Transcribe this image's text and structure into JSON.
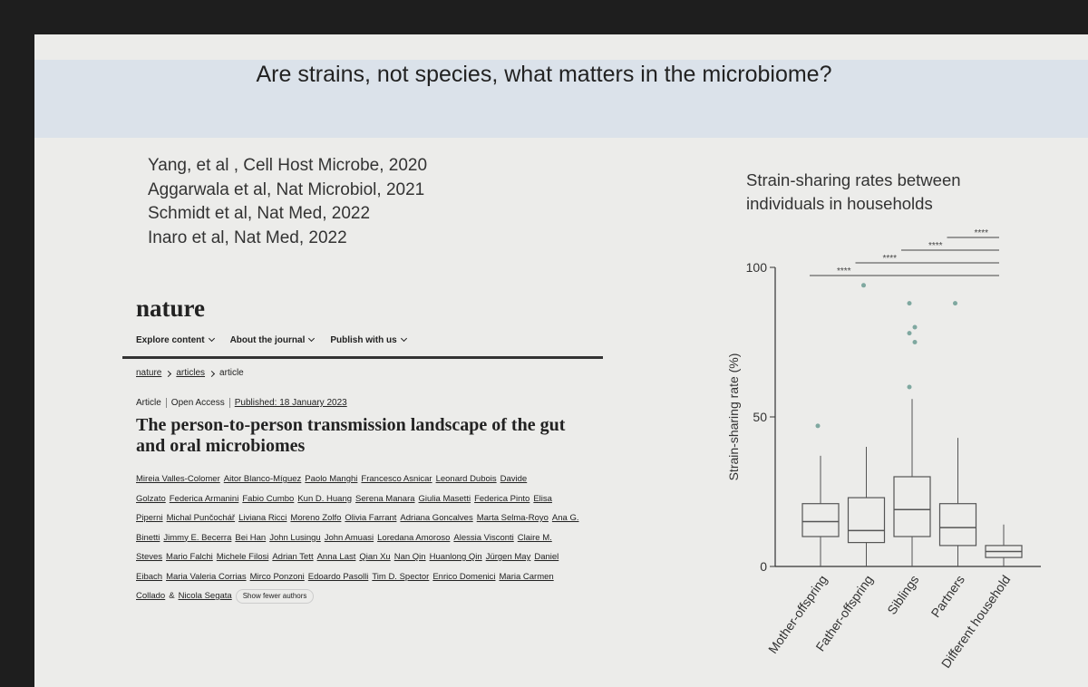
{
  "slide": {
    "title": "Are strains, not species, what matters in the microbiome?"
  },
  "references": [
    "Yang, et al , Cell Host Microbe, 2020",
    "Aggarwala et al, Nat Microbiol, 2021",
    "Schmidt et al, Nat Med, 2022",
    "Inaro et al, Nat Med, 2022"
  ],
  "article": {
    "brand": "nature",
    "nav": [
      "Explore content",
      "About the journal",
      "Publish with us"
    ],
    "breadcrumb": [
      "nature",
      "articles",
      "article"
    ],
    "meta": [
      "Article",
      "Open Access",
      "Published: 18 January 2023"
    ],
    "title": "The person-to-person transmission landscape of the gut and oral microbiomes",
    "authors": [
      "Mireia Valles-Colomer",
      "Aitor Blanco-Míguez",
      "Paolo Manghi",
      "Francesco Asnicar",
      "Leonard Dubois",
      "Davide Golzato",
      "Federica Armanini",
      "Fabio Cumbo",
      "Kun D. Huang",
      "Serena Manara",
      "Giulia Masetti",
      "Federica Pinto",
      "Elisa Piperni",
      "Michal Punčochář",
      "Liviana Ricci",
      "Moreno Zolfo",
      "Olivia Farrant",
      "Adriana Goncalves",
      "Marta Selma-Royo",
      "Ana G. Binetti",
      "Jimmy E. Becerra",
      "Bei Han",
      "John Lusingu",
      "John Amuasi",
      "Loredana Amoroso",
      "Alessia Visconti",
      "Claire M. Steves",
      "Mario Falchi",
      "Michele Filosi",
      "Adrian Tett",
      "Anna Last",
      "Qian Xu",
      "Nan Qin",
      "Huanlong Qin",
      "Jürgen May",
      "Daniel Eibach",
      "Maria Valeria Corrias",
      "Mirco Ponzoni",
      "Edoardo Pasolli",
      "Tim D. Spector",
      "Enrico Domenici",
      "Maria Carmen Collado",
      "Nicola Segata"
    ],
    "author_joiner": "&",
    "show_fewer": "Show fewer authors"
  },
  "chart_data": {
    "type": "box",
    "title": "Strain-sharing rates between individuals in households",
    "y_label": "Strain-sharing rate (%)",
    "categories": [
      "Mother-offspring",
      "Father-offspring",
      "Siblings",
      "Partners",
      "Different household"
    ],
    "whisker_low": [
      0,
      0,
      0,
      0,
      0
    ],
    "q1": [
      10,
      8,
      10,
      7,
      3
    ],
    "median": [
      15,
      12,
      19,
      13,
      5
    ],
    "q3": [
      21,
      23,
      30,
      21,
      7
    ],
    "whisker_high": [
      37,
      40,
      56,
      43,
      14
    ],
    "outliers": [
      [
        47
      ],
      [
        94
      ],
      [
        60,
        75,
        78,
        80,
        88
      ],
      [
        88
      ],
      []
    ],
    "ylim": [
      0,
      100
    ],
    "yticks": [
      0,
      50,
      100
    ],
    "significance_labels": [
      "****",
      "****",
      "****",
      "****"
    ],
    "box_color": "#555555",
    "point_color": "#7fa8a0"
  }
}
